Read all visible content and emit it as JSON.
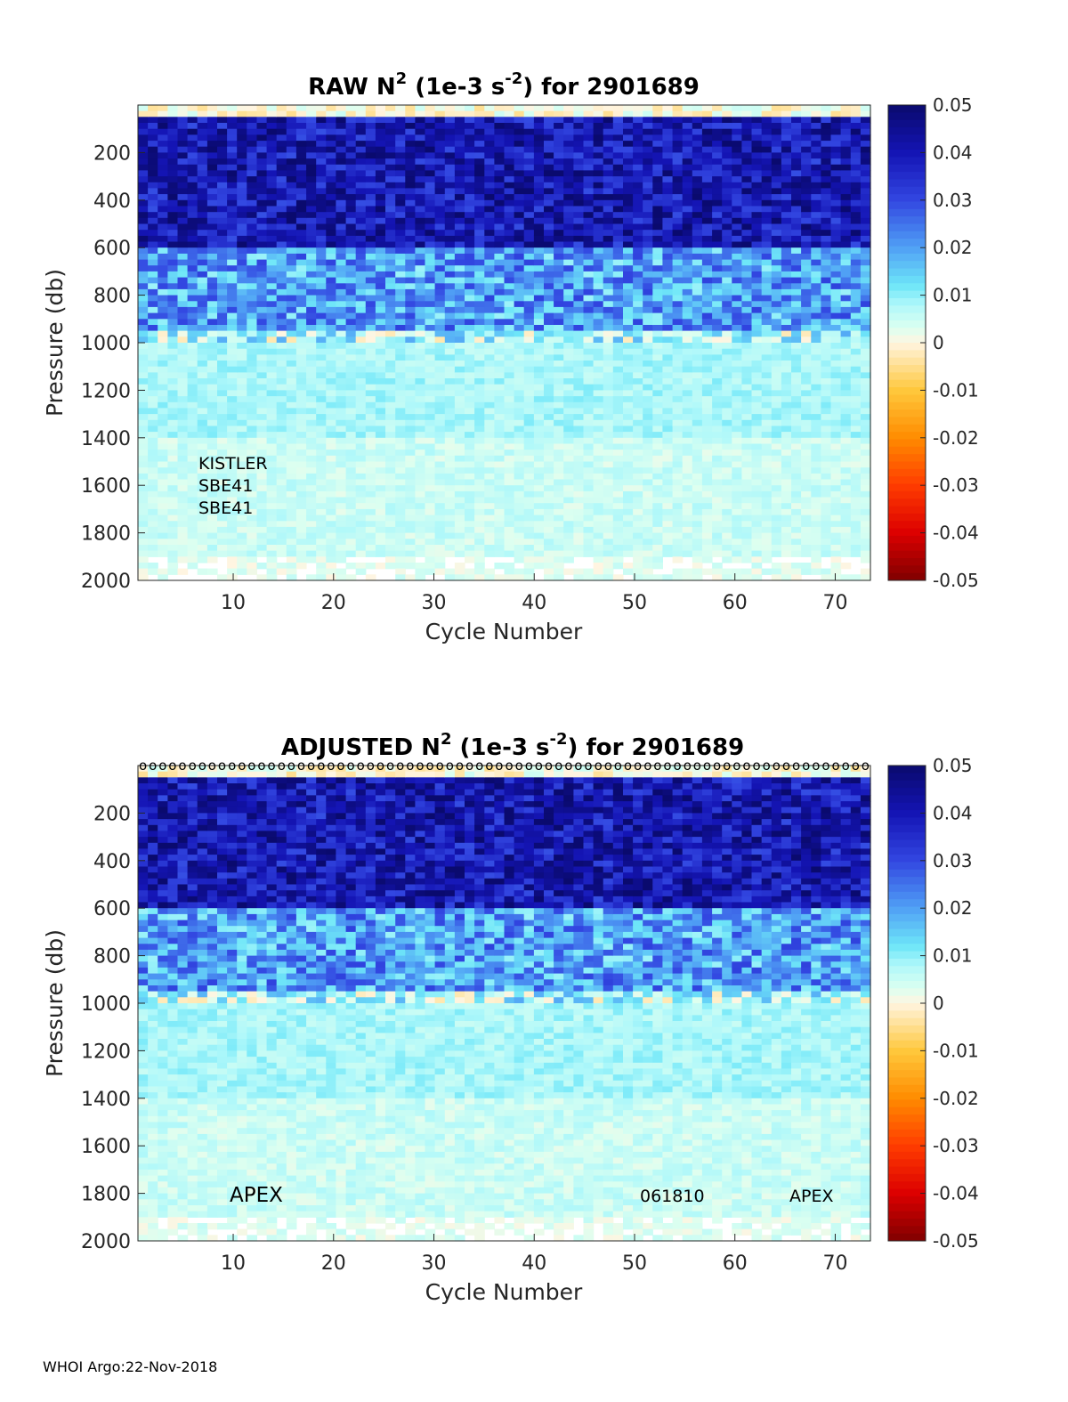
{
  "chart_data": [
    {
      "type": "heatmap",
      "title_prefix": "RAW N",
      "title_sup1": "2",
      "title_mid": " (1e-3 s",
      "title_sup2": "-2",
      "title_suffix": ") for 2901689",
      "xlabel": "Cycle Number",
      "ylabel": "Pressure (db)",
      "xlim": [
        1,
        74
      ],
      "ylim": [
        2000,
        0
      ],
      "x_ticks": [
        "10",
        "20",
        "30",
        "40",
        "50",
        "60",
        "70"
      ],
      "y_ticks": [
        "200",
        "400",
        "600",
        "800",
        "1000",
        "1200",
        "1400",
        "1600",
        "1800",
        "2000"
      ],
      "colorbar": {
        "min": -0.05,
        "max": 0.05,
        "ticks": [
          "0.05",
          "0.04",
          "0.03",
          "0.02",
          "0.01",
          "0",
          "-0.01",
          "-0.02",
          "-0.03",
          "-0.04",
          "-0.05"
        ]
      },
      "colormap": "blue-cyan-white-orange-red (jet-like diverging)",
      "depth_profile": [
        {
          "pressure_range": [
            0,
            50
          ],
          "value": 0.0
        },
        {
          "pressure_range": [
            50,
            600
          ],
          "value": 0.04
        },
        {
          "pressure_range": [
            600,
            950
          ],
          "value": 0.02
        },
        {
          "pressure_range": [
            950,
            1400
          ],
          "value": 0.008
        },
        {
          "pressure_range": [
            1400,
            1900
          ],
          "value": 0.005
        },
        {
          "pressure_range": [
            1900,
            2000
          ],
          "value": 0.003
        }
      ],
      "annotations": [
        "KISTLER",
        "SBE41",
        "SBE41"
      ]
    },
    {
      "type": "heatmap",
      "title_prefix": "ADJUSTED N",
      "title_sup1": "2",
      "title_mid": " (1e-3 s",
      "title_sup2": "-2",
      "title_suffix": ") for 2901689",
      "xlabel": "Cycle Number",
      "ylabel": "Pressure (db)",
      "xlim": [
        1,
        74
      ],
      "ylim": [
        2000,
        0
      ],
      "x_ticks": [
        "10",
        "20",
        "30",
        "40",
        "50",
        "60",
        "70"
      ],
      "y_ticks": [
        "200",
        "400",
        "600",
        "800",
        "1000",
        "1200",
        "1400",
        "1600",
        "1800",
        "2000"
      ],
      "colorbar": {
        "min": -0.05,
        "max": 0.05,
        "ticks": [
          "0.05",
          "0.04",
          "0.03",
          "0.02",
          "0.01",
          "0",
          "-0.01",
          "-0.02",
          "-0.03",
          "-0.04",
          "-0.05"
        ]
      },
      "colormap": "blue-cyan-white-orange-red (jet-like diverging)",
      "depth_profile": [
        {
          "pressure_range": [
            0,
            50
          ],
          "value": 0.0
        },
        {
          "pressure_range": [
            50,
            600
          ],
          "value": 0.04
        },
        {
          "pressure_range": [
            600,
            950
          ],
          "value": 0.02
        },
        {
          "pressure_range": [
            950,
            1400
          ],
          "value": 0.008
        },
        {
          "pressure_range": [
            1400,
            1900
          ],
          "value": 0.005
        },
        {
          "pressure_range": [
            1900,
            2000
          ],
          "value": 0.003
        }
      ],
      "qc_markers": "o",
      "annotations": [
        "APEX",
        "061810",
        "APEX"
      ]
    }
  ],
  "footer": "WHOI Argo:22-Nov-2018"
}
